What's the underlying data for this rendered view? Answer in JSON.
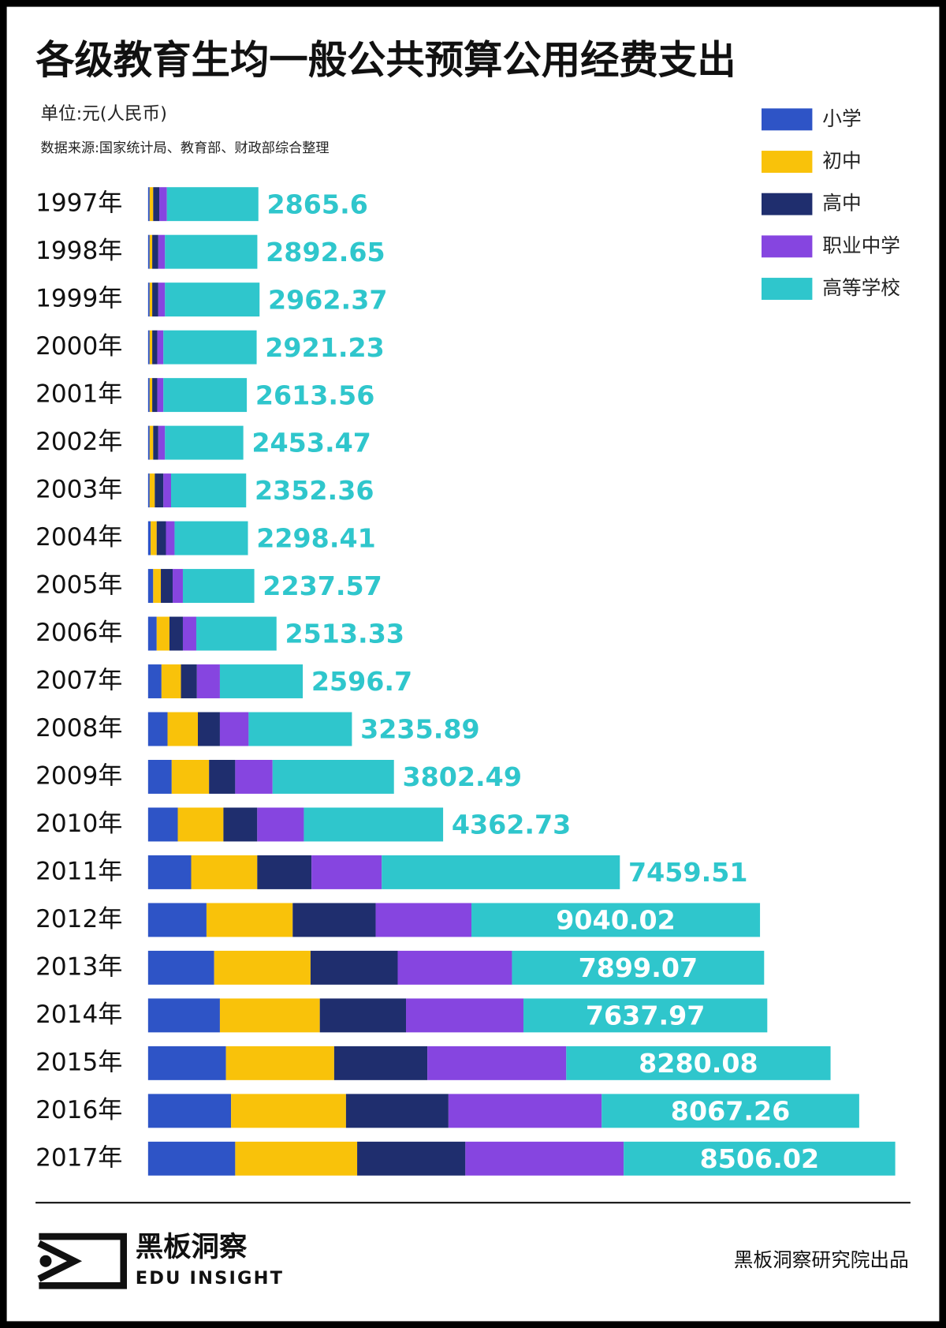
{
  "chart_data": {
    "type": "stacked-bar-horizontal",
    "title": "各级教育生均一般公共预算公用经费支出",
    "subtitle": "单位:元(人民币)",
    "source": "数据来源:国家统计局、教育部、财政部综合整理",
    "categories": [
      "1997年",
      "1998年",
      "1999年",
      "2000年",
      "2001年",
      "2002年",
      "2003年",
      "2004年",
      "2005年",
      "2006年",
      "2007年",
      "2008年",
      "2009年",
      "2010年",
      "2011年",
      "2012年",
      "2013年",
      "2014年",
      "2015年",
      "2016年",
      "2017年"
    ],
    "legend": "top-right",
    "series": [
      {
        "name": "小学",
        "color": "#2e54c6",
        "values": [
          50,
          50,
          50,
          50,
          50,
          50,
          50,
          80,
          160,
          270,
          420,
          610,
          740,
          930,
          1350,
          1830,
          2070,
          2250,
          2440,
          2600,
          2730
        ]
      },
      {
        "name": "初中",
        "color": "#f9c20a",
        "values": [
          110,
          80,
          80,
          80,
          80,
          110,
          160,
          190,
          240,
          400,
          610,
          950,
          1170,
          1430,
          2070,
          2700,
          3020,
          3130,
          3390,
          3600,
          3820
        ]
      },
      {
        "name": "高中",
        "color": "#1f2e6e",
        "values": [
          190,
          190,
          190,
          160,
          160,
          160,
          270,
          290,
          370,
          420,
          500,
          690,
          820,
          1060,
          1700,
          2600,
          2730,
          2700,
          2920,
          3210,
          3390
        ]
      },
      {
        "name": "职业中学",
        "color": "#8645e0",
        "values": [
          240,
          210,
          210,
          190,
          190,
          210,
          240,
          270,
          320,
          420,
          720,
          900,
          1170,
          1460,
          2200,
          3000,
          3580,
          3680,
          4350,
          4800,
          4960
        ]
      },
      {
        "name": "高等学校",
        "color": "#2fc6cc",
        "values": [
          2865.6,
          2892.65,
          2962.37,
          2921.23,
          2613.56,
          2453.47,
          2352.36,
          2298.41,
          2237.57,
          2513.33,
          2596.7,
          3235.89,
          3802.49,
          4362.73,
          7459.51,
          9040.02,
          7899.07,
          7637.97,
          8280.08,
          8067.26,
          8506.02
        ]
      }
    ],
    "footer": {
      "brand": "黑板洞察",
      "brand_en": "EDU INSIGHT",
      "credit": "黑板洞察研究院出品"
    }
  }
}
